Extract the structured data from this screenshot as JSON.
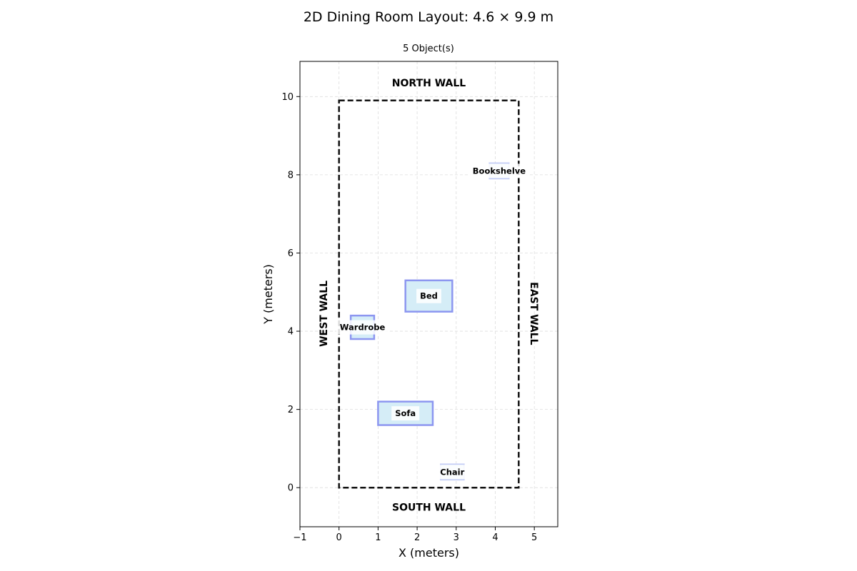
{
  "chart_data": {
    "type": "scatter",
    "title": "2D Dining Room Layout: 4.6 × 9.9 m",
    "subtitle": "5 Object(s)",
    "xlabel": "X (meters)",
    "ylabel": "Y (meters)",
    "xlim": [
      -1,
      5.6
    ],
    "ylim": [
      -1,
      10.9
    ],
    "xticks": [
      -1,
      0,
      1,
      2,
      3,
      4,
      5
    ],
    "yticks": [
      0,
      2,
      4,
      6,
      8,
      10
    ],
    "xtick_labels": [
      "−1",
      "0",
      "1",
      "2",
      "3",
      "4",
      "5"
    ],
    "ytick_labels": [
      "0",
      "2",
      "4",
      "6",
      "8",
      "10"
    ],
    "grid": true,
    "room": {
      "width": 4.6,
      "depth": 9.9
    },
    "walls": {
      "north": "NORTH WALL",
      "south": "SOUTH WALL",
      "west": "WEST WALL",
      "east": "EAST WALL"
    },
    "objects": [
      {
        "name": "Bookshelve",
        "x": 3.85,
        "y": 7.9,
        "w": 0.5,
        "h": 0.4,
        "emphasis": "light"
      },
      {
        "name": "Bed",
        "x": 1.7,
        "y": 4.5,
        "w": 1.2,
        "h": 0.8,
        "emphasis": "strong"
      },
      {
        "name": "Wardrobe",
        "x": 0.3,
        "y": 3.8,
        "w": 0.6,
        "h": 0.6,
        "emphasis": "strong"
      },
      {
        "name": "Sofa",
        "x": 1.0,
        "y": 1.6,
        "w": 1.4,
        "h": 0.6,
        "emphasis": "strong"
      },
      {
        "name": "Chair",
        "x": 2.6,
        "y": 0.2,
        "w": 0.6,
        "h": 0.4,
        "emphasis": "light"
      }
    ]
  },
  "colors": {
    "object_fill": "#d5edf7",
    "object_stroke_strong": "#8c96f0",
    "object_stroke_light": "#c4cdf6",
    "room_outline": "#111111",
    "grid": "#dddddd"
  }
}
